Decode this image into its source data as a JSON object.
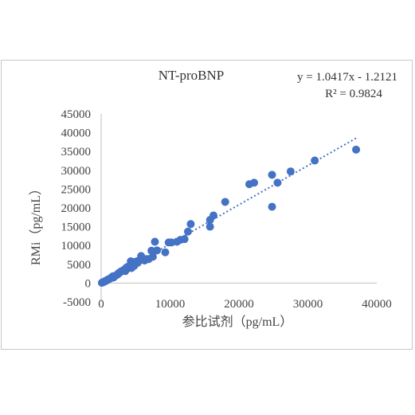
{
  "chart_data": {
    "type": "scatter",
    "title": "NT-proBNP",
    "xlabel": "参比试剂（pg/mL）",
    "ylabel": "RMi（pg/mL）",
    "xlim": [
      0,
      40000
    ],
    "ylim": [
      -5000,
      45000
    ],
    "x_ticks": [
      "0",
      "10000",
      "20000",
      "30000",
      "40000"
    ],
    "y_ticks": [
      "-5000",
      "0",
      "5000",
      "10000",
      "15000",
      "20000",
      "25000",
      "30000",
      "35000",
      "40000",
      "45000"
    ],
    "x_tick_values": [
      0,
      10000,
      20000,
      30000,
      40000
    ],
    "y_tick_values": [
      -5000,
      0,
      5000,
      10000,
      15000,
      20000,
      25000,
      30000,
      35000,
      40000,
      45000
    ],
    "grid": false,
    "legend": "none",
    "marker_color": "#4472c4",
    "trendline": {
      "type": "linear",
      "slope": 1.0417,
      "intercept": -1.2121,
      "style": "dotted",
      "color": "#4472c4",
      "equation_label": "y = 1.0417x - 1.2121",
      "r2_label": "R² = 0.9824"
    },
    "points": [
      [
        100,
        80
      ],
      [
        200,
        180
      ],
      [
        300,
        250
      ],
      [
        400,
        350
      ],
      [
        500,
        450
      ],
      [
        600,
        500
      ],
      [
        700,
        600
      ],
      [
        800,
        700
      ],
      [
        900,
        850
      ],
      [
        1000,
        950
      ],
      [
        1200,
        1100
      ],
      [
        1400,
        1300
      ],
      [
        1500,
        1500
      ],
      [
        1700,
        1800
      ],
      [
        1800,
        1500
      ],
      [
        2000,
        1900
      ],
      [
        2200,
        2100
      ],
      [
        2400,
        2300
      ],
      [
        2500,
        2600
      ],
      [
        2700,
        2800
      ],
      [
        2800,
        3000
      ],
      [
        3000,
        3200
      ],
      [
        3200,
        3300
      ],
      [
        3300,
        3500
      ],
      [
        3500,
        3200
      ],
      [
        3600,
        4000
      ],
      [
        3700,
        3700
      ],
      [
        3800,
        4300
      ],
      [
        4000,
        4200
      ],
      [
        4200,
        4500
      ],
      [
        4300,
        5800
      ],
      [
        4400,
        4000
      ],
      [
        4500,
        4800
      ],
      [
        4600,
        5000
      ],
      [
        4700,
        5600
      ],
      [
        4800,
        4600
      ],
      [
        5000,
        5200
      ],
      [
        5200,
        5800
      ],
      [
        5300,
        5400
      ],
      [
        5500,
        6000
      ],
      [
        5700,
        6200
      ],
      [
        5800,
        7200
      ],
      [
        6000,
        6500
      ],
      [
        6300,
        6000
      ],
      [
        6600,
        6400
      ],
      [
        6900,
        6400
      ],
      [
        7300,
        8600
      ],
      [
        7500,
        7000
      ],
      [
        7800,
        11000
      ],
      [
        8100,
        8700
      ],
      [
        9300,
        8200
      ],
      [
        9800,
        10800
      ],
      [
        10200,
        10800
      ],
      [
        11000,
        11000
      ],
      [
        11500,
        11500
      ],
      [
        12100,
        11700
      ],
      [
        12600,
        13700
      ],
      [
        13000,
        15700
      ],
      [
        15800,
        15000
      ],
      [
        15800,
        16800
      ],
      [
        16300,
        18000
      ],
      [
        18000,
        21600
      ],
      [
        21500,
        26300
      ],
      [
        22200,
        26700
      ],
      [
        24800,
        28800
      ],
      [
        24800,
        20300
      ],
      [
        25600,
        26700
      ],
      [
        27500,
        29700
      ],
      [
        31000,
        32600
      ],
      [
        37000,
        35500
      ]
    ]
  }
}
